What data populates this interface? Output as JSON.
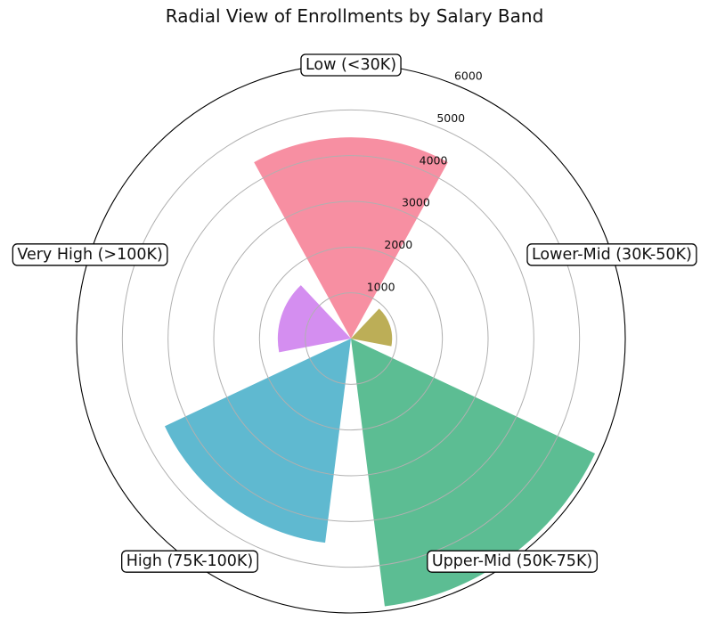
{
  "chart_data": {
    "type": "polar-bar",
    "title": "Radial View of Enrollments by Salary Band",
    "categories": [
      "Low (<30K)",
      "Lower-Mid (30K-50K)",
      "Upper-Mid (50K-75K)",
      "High (75K-100K)",
      "Very High (>100K)"
    ],
    "values": [
      4400,
      900,
      5900,
      4500,
      1600
    ],
    "colors": [
      "#f78fa2",
      "#bcae57",
      "#5cbd93",
      "#5fb9d0",
      "#d48ef0"
    ],
    "radial_ticks": [
      1000,
      2000,
      3000,
      4000,
      5000,
      6000
    ],
    "rlim": [
      0,
      6000
    ],
    "grid": true
  }
}
